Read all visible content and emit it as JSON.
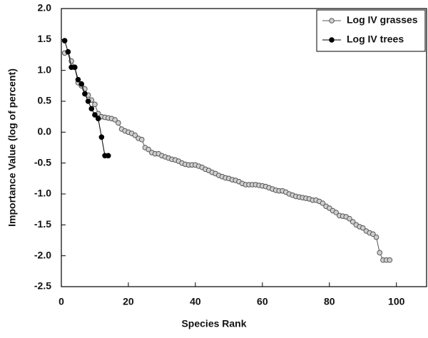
{
  "chart_data": {
    "type": "line",
    "xlabel": "Species Rank",
    "ylabel": "Importance Value (log of percent)",
    "series": [
      {
        "name": "Log IV grasses",
        "color": "#555555",
        "marker_fill": "#cfcfcf",
        "x": [
          1,
          2,
          3,
          4,
          5,
          6,
          7,
          8,
          9,
          10,
          11,
          12,
          13,
          14,
          15,
          16,
          17,
          18,
          19,
          20,
          21,
          22,
          23,
          24,
          25,
          26,
          27,
          28,
          29,
          30,
          31,
          32,
          33,
          34,
          35,
          36,
          37,
          38,
          39,
          40,
          41,
          42,
          43,
          44,
          45,
          46,
          47,
          48,
          49,
          50,
          51,
          52,
          53,
          54,
          55,
          56,
          57,
          58,
          59,
          60,
          61,
          62,
          63,
          64,
          65,
          66,
          67,
          68,
          69,
          70,
          71,
          72,
          73,
          74,
          75,
          76,
          77,
          78,
          79,
          80,
          81,
          82,
          83,
          84,
          85,
          86,
          87,
          88,
          89,
          90,
          91,
          92,
          93,
          94,
          95,
          96,
          97,
          98
        ],
        "values": [
          1.28,
          1.3,
          1.15,
          1.05,
          0.8,
          0.75,
          0.7,
          0.6,
          0.52,
          0.45,
          0.3,
          0.25,
          0.24,
          0.23,
          0.22,
          0.2,
          0.15,
          0.05,
          0.02,
          0.0,
          -0.02,
          -0.05,
          -0.1,
          -0.12,
          -0.25,
          -0.28,
          -0.33,
          -0.35,
          -0.35,
          -0.38,
          -0.4,
          -0.42,
          -0.44,
          -0.45,
          -0.47,
          -0.5,
          -0.52,
          -0.53,
          -0.53,
          -0.53,
          -0.55,
          -0.57,
          -0.6,
          -0.62,
          -0.65,
          -0.67,
          -0.7,
          -0.72,
          -0.74,
          -0.75,
          -0.77,
          -0.78,
          -0.8,
          -0.83,
          -0.85,
          -0.85,
          -0.85,
          -0.85,
          -0.86,
          -0.87,
          -0.88,
          -0.9,
          -0.92,
          -0.94,
          -0.95,
          -0.95,
          -0.97,
          -1.0,
          -1.02,
          -1.04,
          -1.05,
          -1.06,
          -1.07,
          -1.08,
          -1.1,
          -1.1,
          -1.12,
          -1.15,
          -1.2,
          -1.23,
          -1.27,
          -1.3,
          -1.35,
          -1.36,
          -1.37,
          -1.4,
          -1.45,
          -1.5,
          -1.53,
          -1.55,
          -1.6,
          -1.63,
          -1.65,
          -1.7,
          -1.95,
          -2.07,
          -2.07,
          -2.07
        ]
      },
      {
        "name": "Log IV trees",
        "color": "#000000",
        "marker_fill": "#000000",
        "x": [
          1,
          2,
          3,
          4,
          5,
          6,
          7,
          8,
          9,
          10,
          11,
          12,
          13,
          14
        ],
        "values": [
          1.48,
          1.3,
          1.05,
          1.05,
          0.85,
          0.78,
          0.62,
          0.5,
          0.38,
          0.28,
          0.22,
          -0.08,
          -0.38,
          -0.38
        ]
      }
    ],
    "xlim": [
      0,
      109
    ],
    "xticks": [
      0,
      20,
      40,
      60,
      80,
      100
    ],
    "ylim": [
      -2.5,
      2.0
    ],
    "yticks": [
      {
        "value": -2.5,
        "label": "-2.5"
      },
      {
        "value": -2,
        "label": "-2.0"
      },
      -1.5,
      {
        "value": -1,
        "label": "-1.0"
      },
      -0.5,
      {
        "value": 0,
        "label": "0.0"
      },
      0.5,
      {
        "value": 1,
        "label": "1.0"
      },
      1.5,
      {
        "value": 2,
        "label": "2.0"
      }
    ],
    "legend": "upper right"
  }
}
